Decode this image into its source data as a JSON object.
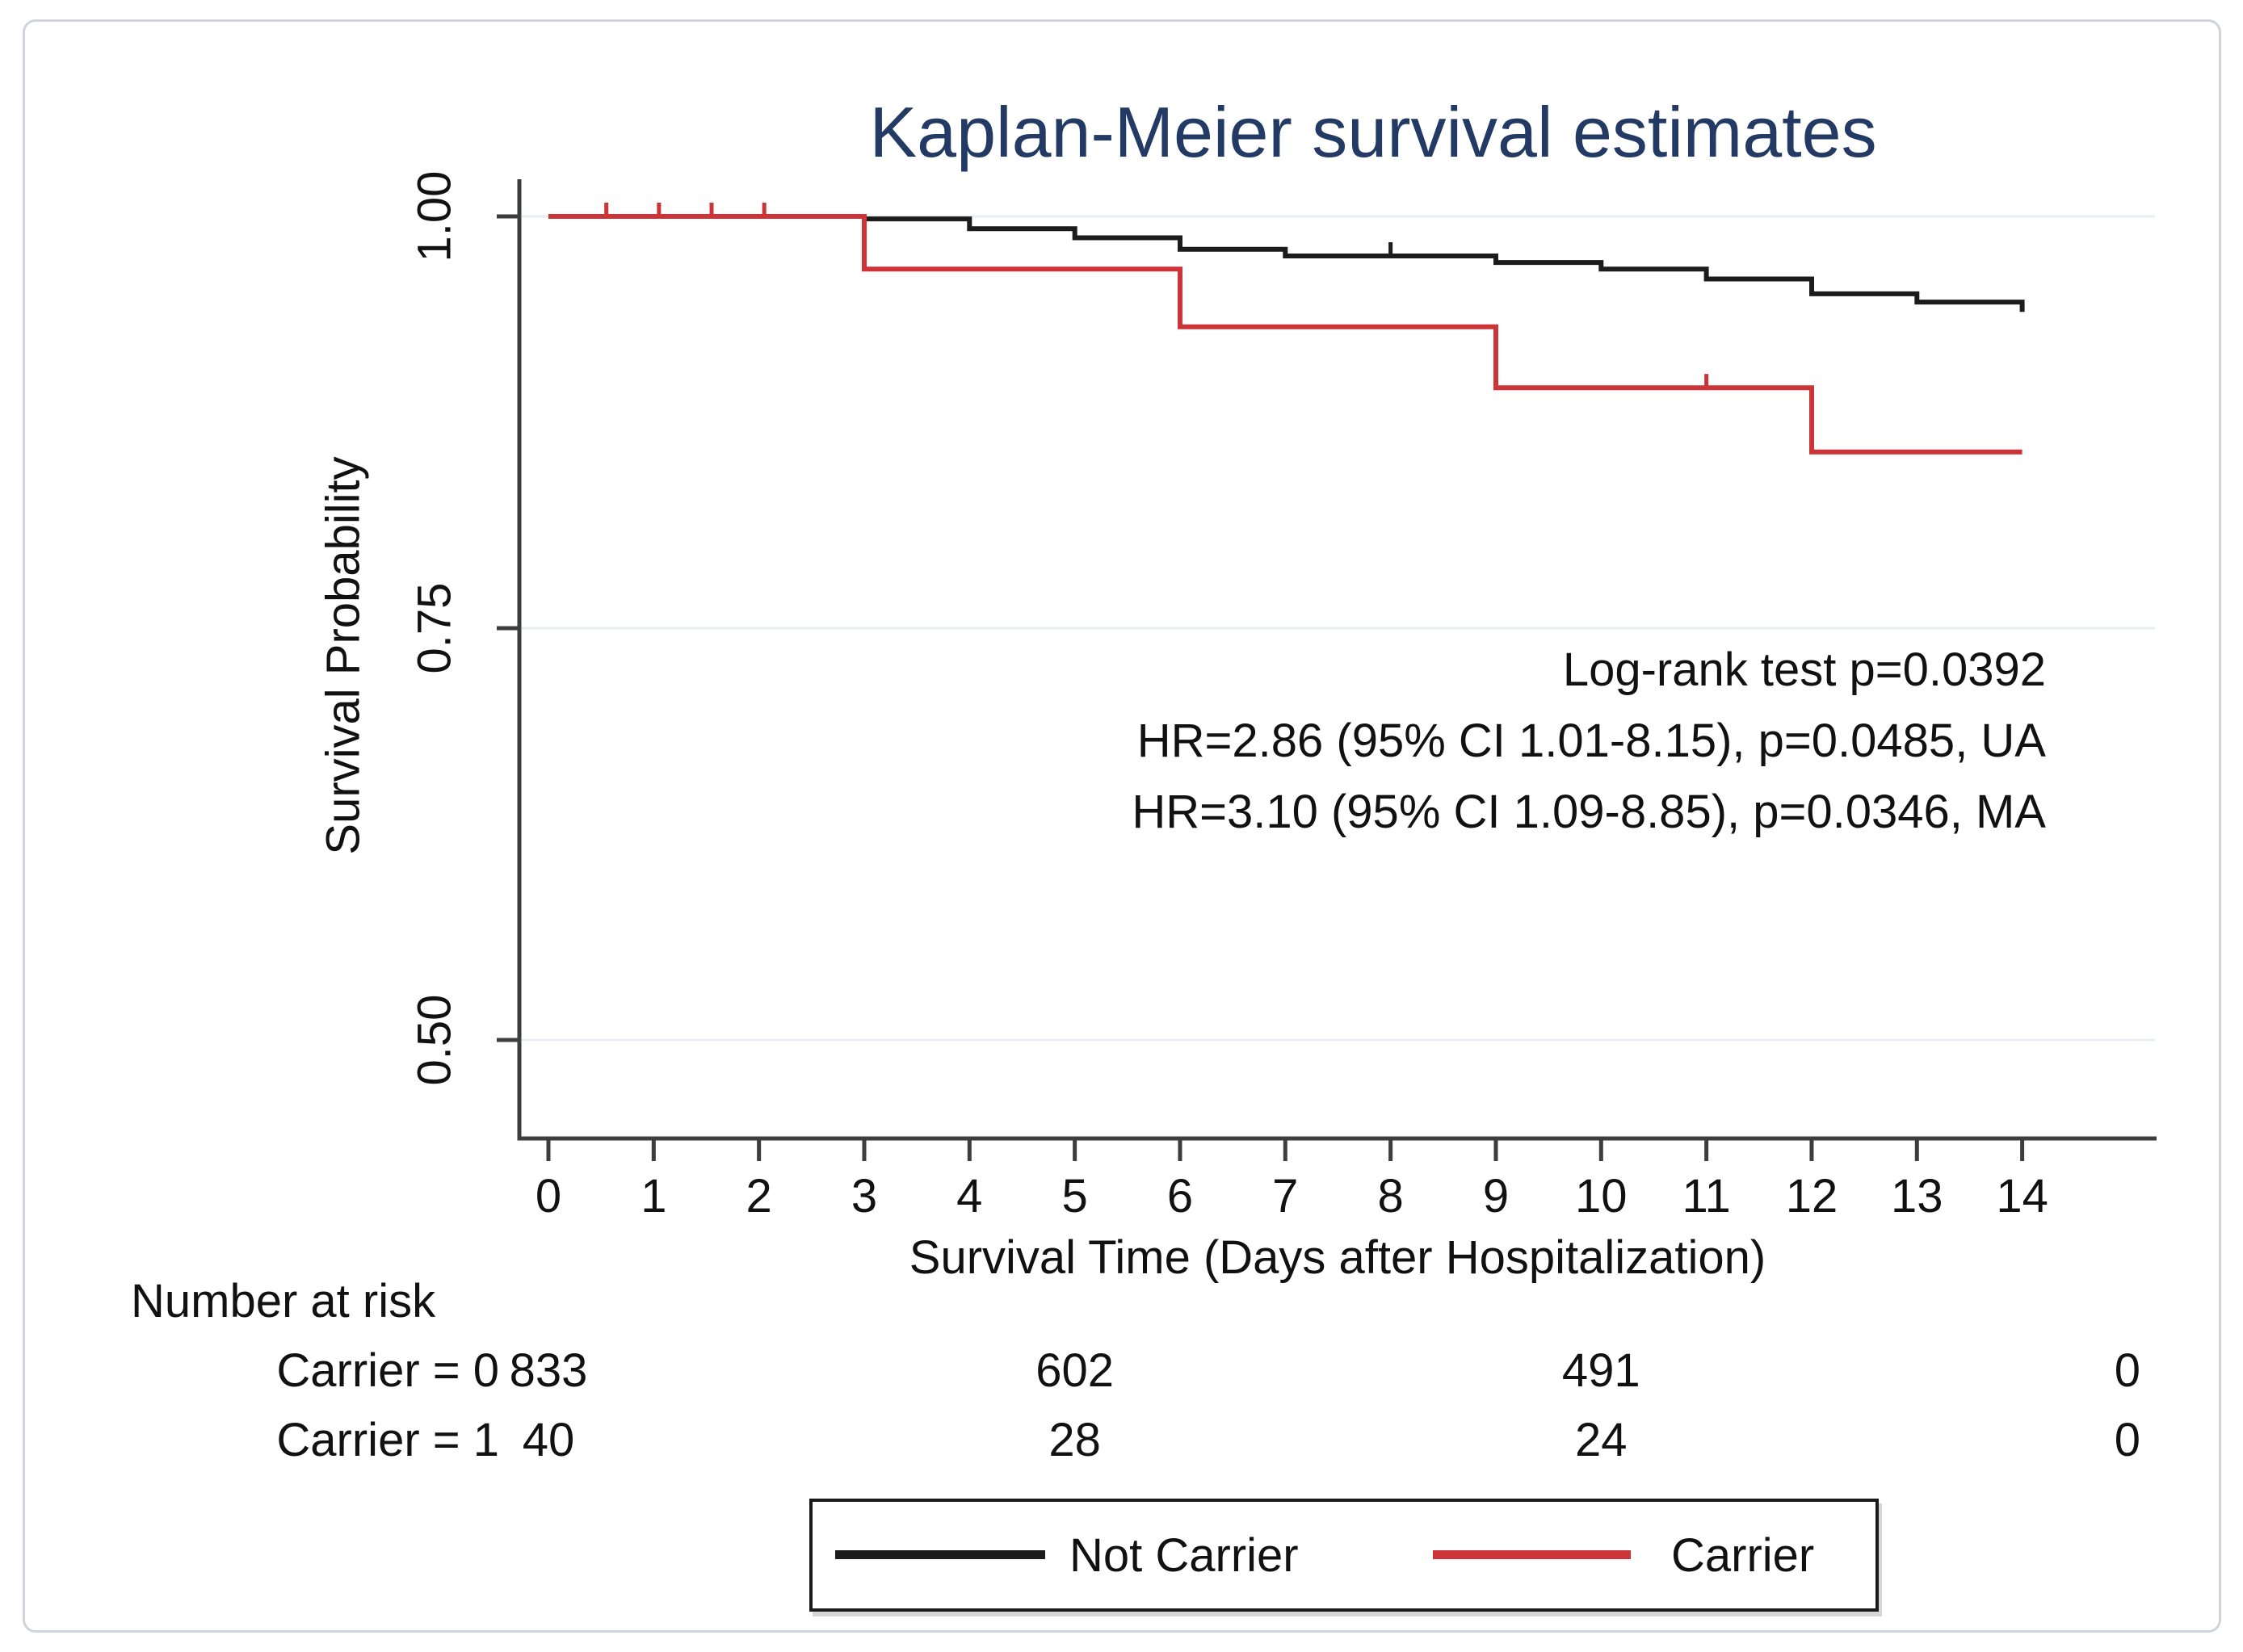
{
  "card": {
    "border_color": "#cdd4db",
    "background": "#ffffff"
  },
  "chart_data": {
    "type": "line",
    "subtype": "kaplan-meier-step",
    "title": "Kaplan-Meier survival estimates",
    "title_color": "#233a64",
    "xlabel": "Survival Time (Days after Hospitalization)",
    "ylabel": "Survival Probability",
    "x_ticks": [
      "0",
      "1",
      "2",
      "3",
      "4",
      "5",
      "6",
      "7",
      "8",
      "9",
      "10",
      "11",
      "12",
      "13",
      "14"
    ],
    "y_ticks": [
      {
        "label": "1.00",
        "value": 1.0
      },
      {
        "label": "0.75",
        "value": 0.75
      },
      {
        "label": "0.50",
        "value": 0.5
      }
    ],
    "grid": true,
    "gridline_values": [
      1.0,
      0.75,
      0.5
    ],
    "xlim": [
      0,
      15.3
    ],
    "ylim": [
      0.44,
      1.02
    ],
    "axis_color": "#3d3d3d",
    "gridline_color": "#e8edf2",
    "series": [
      {
        "name": "Not Carrier",
        "color": "#1c1c1c",
        "end_t": 14,
        "steps": [
          {
            "t": 0,
            "s": 1.0
          },
          {
            "t": 3,
            "s": 0.9985
          },
          {
            "t": 4,
            "s": 0.9925
          },
          {
            "t": 5,
            "s": 0.987
          },
          {
            "t": 6,
            "s": 0.98
          },
          {
            "t": 7,
            "s": 0.976
          },
          {
            "t": 9,
            "s": 0.972
          },
          {
            "t": 10,
            "s": 0.968
          },
          {
            "t": 11,
            "s": 0.962
          },
          {
            "t": 12,
            "s": 0.953
          },
          {
            "t": 13,
            "s": 0.948
          },
          {
            "t": 14,
            "s": 0.942
          }
        ],
        "censor_marks": [
          {
            "t": 8,
            "s": 0.976
          }
        ]
      },
      {
        "name": "Carrier",
        "color": "#cc3438",
        "end_t": 14,
        "steps": [
          {
            "t": 0,
            "s": 1.0
          },
          {
            "t": 3,
            "s": 0.968
          },
          {
            "t": 6,
            "s": 0.933
          },
          {
            "t": 9,
            "s": 0.896
          },
          {
            "t": 12,
            "s": 0.857
          }
        ],
        "censor_marks": [
          {
            "t": 0.55,
            "s": 1.0
          },
          {
            "t": 1.05,
            "s": 1.0
          },
          {
            "t": 1.55,
            "s": 1.0
          },
          {
            "t": 2.05,
            "s": 1.0
          },
          {
            "t": 11.0,
            "s": 0.896
          }
        ]
      }
    ],
    "annotations": [
      "Log-rank test p=0.0392",
      "HR=2.86 (95% CI 1.01-8.15), p=0.0485, UA",
      "HR=3.10 (95% CI 1.09-8.85), p=0.0346, MA"
    ],
    "risk_table": {
      "header": "Number at risk",
      "times": [
        0,
        5,
        10,
        15
      ],
      "rows": [
        {
          "label": "Carrier = 0",
          "values": [
            "833",
            "602",
            "491",
            "0"
          ]
        },
        {
          "label": "Carrier = 1",
          "values": [
            "40",
            "28",
            "24",
            "0"
          ]
        }
      ]
    },
    "legend": [
      {
        "label": "Not Carrier",
        "color": "#1c1c1c"
      },
      {
        "label": "Carrier",
        "color": "#cc3438"
      }
    ]
  }
}
